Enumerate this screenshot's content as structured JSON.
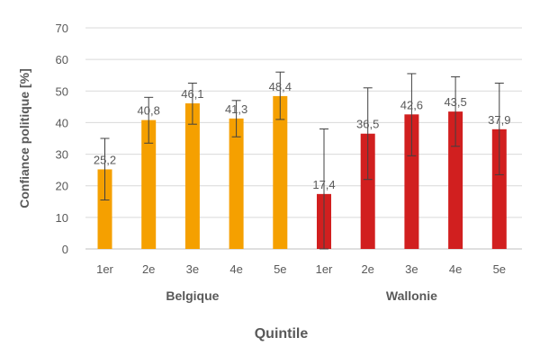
{
  "chart_data": {
    "type": "bar",
    "ylabel": "Confiance politique [%]",
    "xlabel": "Quintile",
    "ylim": [
      0,
      70
    ],
    "yticks": [
      0,
      10,
      20,
      30,
      40,
      50,
      60,
      70
    ],
    "grid": true,
    "legend": "none",
    "groups": [
      {
        "name": "Belgique",
        "color": "#F5A000",
        "categories": [
          "1er",
          "2e",
          "3e",
          "4e",
          "5e"
        ],
        "values": [
          25.2,
          40.8,
          46.1,
          41.3,
          48.4
        ],
        "value_labels": [
          "25,2",
          "40,8",
          "46,1",
          "41,3",
          "48,4"
        ],
        "error_low": [
          15.5,
          33.5,
          39.5,
          35.5,
          41
        ],
        "error_high": [
          35,
          48,
          52.5,
          47,
          56
        ]
      },
      {
        "name": "Wallonie",
        "color": "#D11F1F",
        "categories": [
          "1er",
          "2e",
          "3e",
          "4e",
          "5e"
        ],
        "values": [
          17.4,
          36.5,
          42.6,
          43.5,
          37.9
        ],
        "value_labels": [
          "17,4",
          "36,5",
          "42,6",
          "43,5",
          "37,9"
        ],
        "error_low": [
          0,
          22,
          29.5,
          32.5,
          23.5
        ],
        "error_high": [
          38,
          51,
          55.5,
          54.5,
          52.5
        ]
      }
    ]
  }
}
